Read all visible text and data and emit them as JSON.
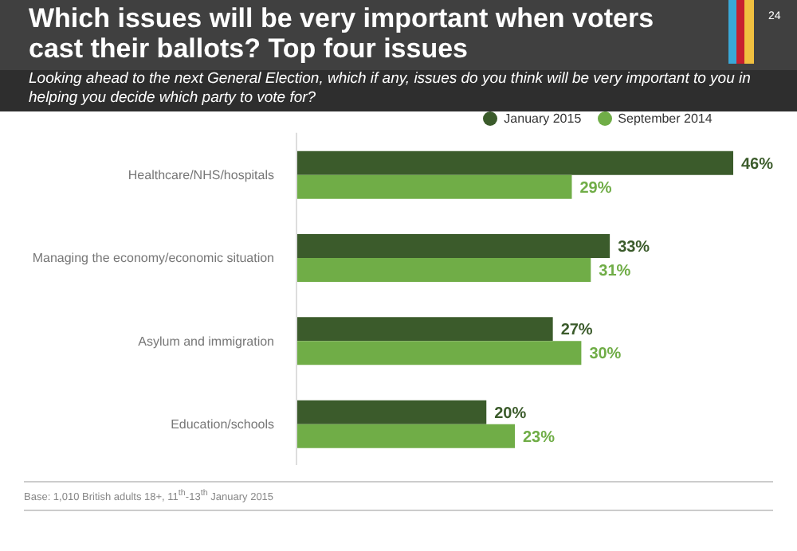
{
  "chart_data": {
    "type": "bar",
    "orientation": "horizontal",
    "title": "Which issues will be very important when voters cast their ballots? Top four issues",
    "subtitle": "Looking ahead to the next General Election, which if any, issues do you think will be very important to you in helping you decide which party to vote for?",
    "categories": [
      "Healthcare/NHS/hospitals",
      "Managing the economy/economic situation",
      "Asylum and immigration",
      "Education/schools"
    ],
    "series": [
      {
        "name": "January 2015",
        "color": "#3b5b2b",
        "values": [
          46,
          33,
          27,
          20
        ],
        "value_labels": [
          "46%",
          "33%",
          "27%",
          "20%"
        ]
      },
      {
        "name": "September 2014",
        "color": "#70ad47",
        "values": [
          29,
          31,
          30,
          23
        ],
        "value_labels": [
          "29%",
          "31%",
          "30%",
          "23%"
        ]
      }
    ],
    "legend": "top",
    "annotations": [
      "24",
      "Base: 1,010 British adults 18+, 11$^{th}$-13$^{th}$ January 2015"
    ]
  }
}
